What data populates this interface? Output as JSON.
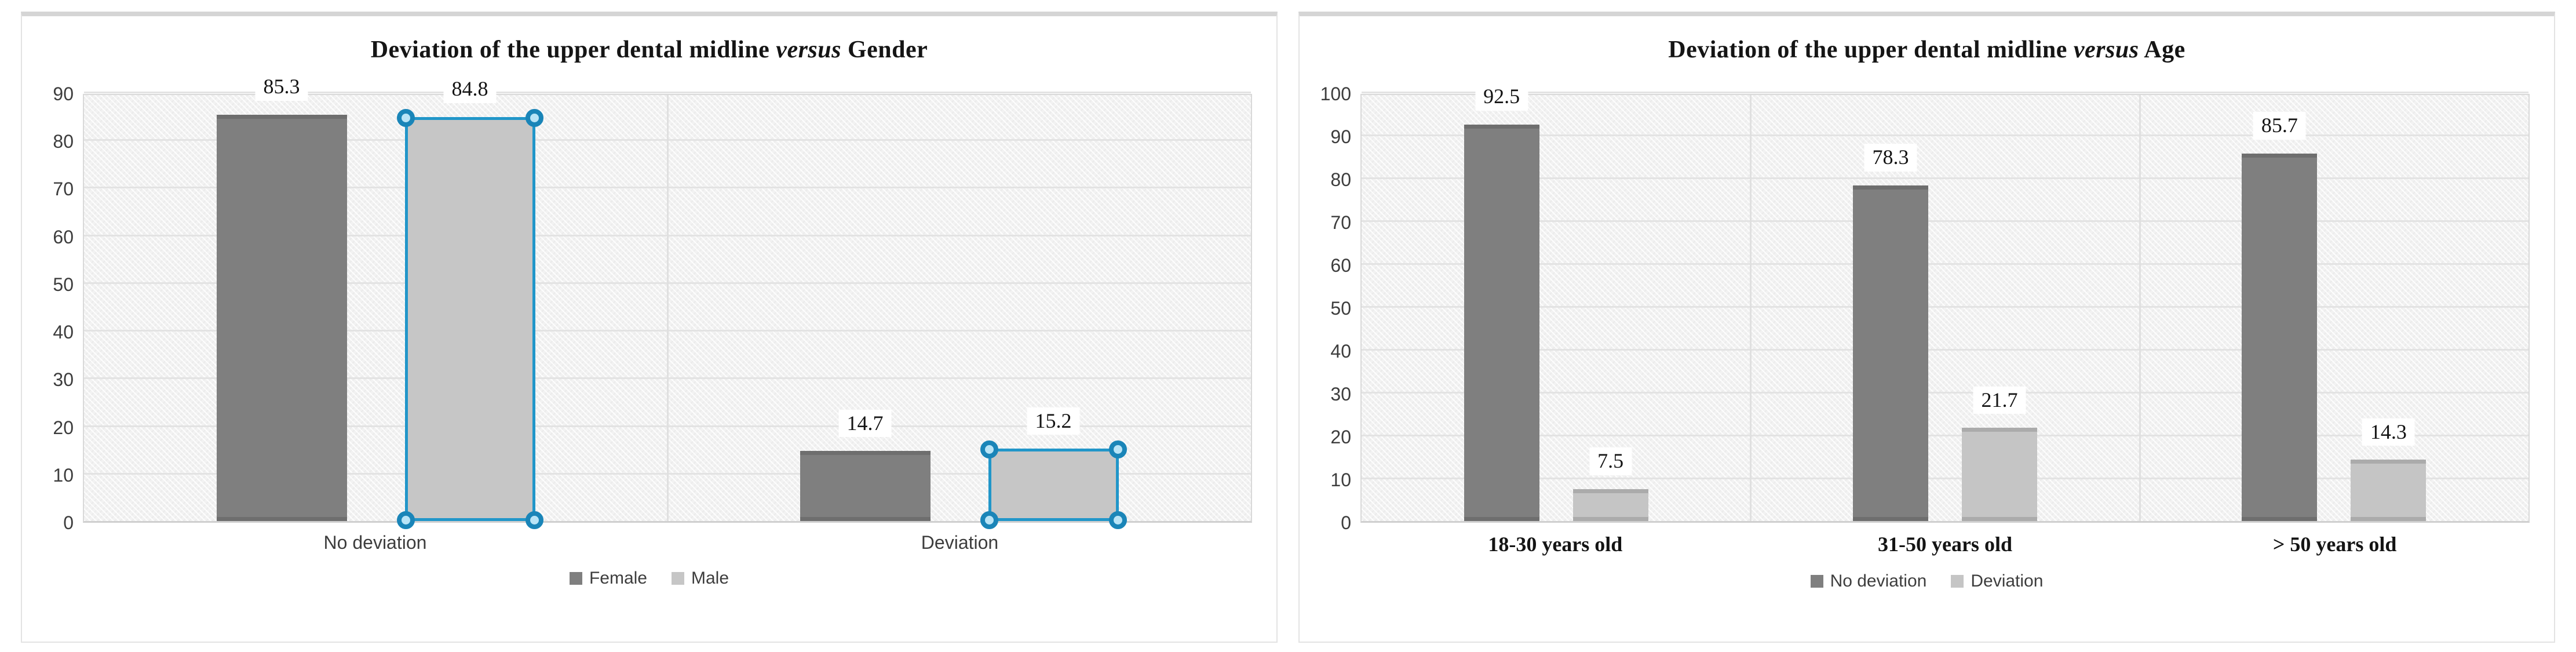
{
  "chart_data": [
    {
      "type": "bar",
      "title": "Deviation of the upper dental midline versus Gender",
      "title_parts": {
        "prefix": "Deviation of the upper dental midline ",
        "italic": "versus",
        "suffix": " Gender"
      },
      "categories": [
        "No deviation",
        "Deviation"
      ],
      "series": [
        {
          "name": "Female",
          "color": "#7f7f7f",
          "values": [
            85.3,
            14.7
          ],
          "selected": false
        },
        {
          "name": "Male",
          "color": "#c6c6c6",
          "values": [
            84.8,
            15.2
          ],
          "selected": true
        }
      ],
      "data_labels": [
        [
          "85.3",
          "14.7"
        ],
        [
          "84.8",
          "15.2"
        ]
      ],
      "ylim": [
        0,
        90
      ],
      "ytick_step": 10,
      "ytick_labels": [
        "0",
        "10",
        "20",
        "30",
        "40",
        "50",
        "60",
        "70",
        "80",
        "90"
      ],
      "grid": true,
      "legend_position": "bottom",
      "selection_color": "#2196c9"
    },
    {
      "type": "bar",
      "title": "Deviation of the upper dental midline versus Age",
      "title_parts": {
        "prefix": "Deviation of the upper dental midline ",
        "italic": "versus",
        "suffix": " Age"
      },
      "categories": [
        "18-30 years old",
        "31-50 years old",
        "> 50 years old"
      ],
      "series": [
        {
          "name": "No deviation",
          "color": "#7f7f7f",
          "values": [
            92.5,
            78.3,
            85.7
          ],
          "selected": false
        },
        {
          "name": "Deviation",
          "color": "#c5c5c5",
          "values": [
            7.5,
            21.7,
            14.3
          ],
          "selected": false
        }
      ],
      "data_labels": [
        [
          "92.5",
          "78.3",
          "85.7"
        ],
        [
          "7.5",
          "21.7",
          "14.3"
        ]
      ],
      "ylim": [
        0,
        100
      ],
      "ytick_step": 10,
      "ytick_labels": [
        "0",
        "10",
        "20",
        "30",
        "40",
        "50",
        "60",
        "70",
        "80",
        "90",
        "100"
      ],
      "grid": true,
      "legend_position": "bottom"
    }
  ],
  "colors": {
    "series_dark_gray": "#7f7f7f",
    "series_light_gray": "#c5c5c5",
    "selection_blue": "#2196c9",
    "gridline": "#e3e3e3",
    "plot_background": "#f2f2f2",
    "panel_border": "#d5d5d5"
  }
}
